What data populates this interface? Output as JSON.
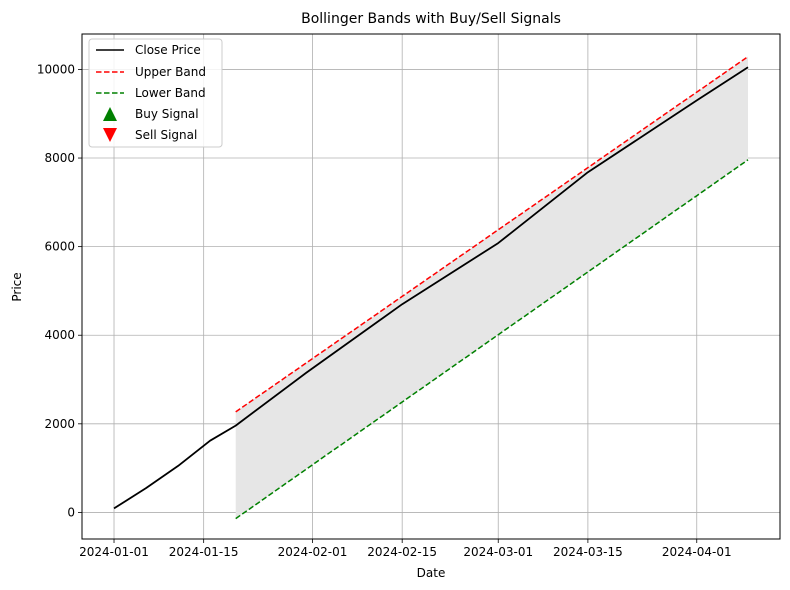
{
  "chart_data": {
    "type": "line",
    "title": "Bollinger Bands with Buy/Sell Signals",
    "xlabel": "Date",
    "ylabel": "Price",
    "x_start": "2024-01-01",
    "x_end": "2024-04-09",
    "xlim": [
      "2023-12-27",
      "2024-04-14"
    ],
    "ylim": [
      -600,
      10800
    ],
    "x_ticks": [
      "2024-01-01",
      "2024-01-15",
      "2024-02-01",
      "2024-02-15",
      "2024-03-01",
      "2024-03-15",
      "2024-04-01"
    ],
    "y_ticks": [
      0,
      2000,
      4000,
      6000,
      8000,
      10000
    ],
    "grid": true,
    "legend_position": "top-left",
    "close_price": [
      [
        "2024-01-01",
        90
      ],
      [
        "2024-01-06",
        550
      ],
      [
        "2024-01-11",
        1050
      ],
      [
        "2024-01-16",
        1620
      ],
      [
        "2024-01-20",
        1960
      ],
      [
        "2024-01-31",
        3150
      ],
      [
        "2024-02-15",
        4700
      ],
      [
        "2024-03-01",
        6080
      ],
      [
        "2024-03-15",
        7680
      ],
      [
        "2024-04-01",
        9300
      ],
      [
        "2024-04-09",
        10050
      ]
    ],
    "band_start": "2024-01-20",
    "band_end": "2024-04-09",
    "upper_band": [
      2270,
      10290
    ],
    "lower_band": [
      -140,
      7960
    ],
    "series": [
      {
        "name": "Close Price",
        "color": "#000000",
        "style": "solid"
      },
      {
        "name": "Upper Band",
        "color": "#ff0000",
        "style": "dashed"
      },
      {
        "name": "Lower Band",
        "color": "#008000",
        "style": "dashed"
      },
      {
        "name": "Buy Signal",
        "color": "#008000",
        "marker": "triangle-up"
      },
      {
        "name": "Sell Signal",
        "color": "#ff0000",
        "marker": "triangle-down"
      }
    ],
    "band_fill_color": "#e6e6e6",
    "grid_color": "#b0b0b0"
  }
}
